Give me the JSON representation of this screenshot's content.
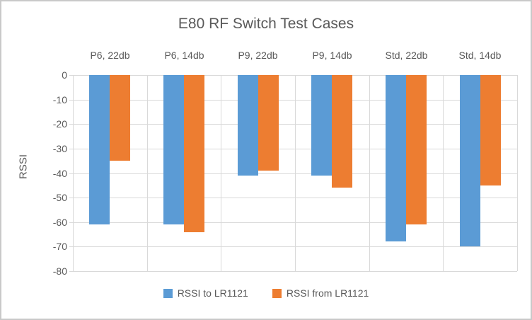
{
  "window": {
    "background": "#FFFFFF",
    "border_color": "#C9C9C9"
  },
  "chart_data": {
    "type": "bar",
    "title": "E80 RF Switch Test Cases",
    "categories": [
      "P6, 22db",
      "P6, 14db",
      "P9, 22db",
      "P9, 14db",
      "Std, 22db",
      "Std, 14db"
    ],
    "series": [
      {
        "name": "RSSI to LR1121",
        "color": "#5B9BD5",
        "values": [
          -61,
          -61,
          -41,
          -41,
          -68,
          -70
        ]
      },
      {
        "name": "RSSI from LR1121",
        "color": "#ED7D31",
        "values": [
          -35,
          -64,
          -39,
          -46,
          -61,
          -45
        ]
      }
    ],
    "xlabel": "",
    "ylabel": "RSSI",
    "ylim": [
      -80,
      0
    ],
    "yticks": [
      0,
      -10,
      -20,
      -30,
      -40,
      -50,
      -60,
      -70,
      -80
    ],
    "grid": true,
    "category_label_position": "top",
    "legend_position": "bottom",
    "text_color": "#595959",
    "gridline_color": "#D9D9D9"
  }
}
